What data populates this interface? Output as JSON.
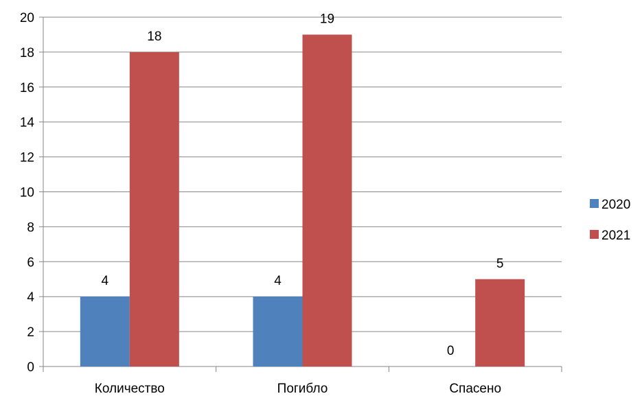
{
  "chart_data": {
    "type": "bar",
    "categories": [
      "Количество",
      "Погибло",
      "Спасено"
    ],
    "series": [
      {
        "name": "2020",
        "values": [
          4,
          4,
          0
        ],
        "color": "#4F81BD"
      },
      {
        "name": "2021",
        "values": [
          18,
          19,
          5
        ],
        "color": "#C0504D"
      }
    ],
    "ylim": [
      0,
      20
    ],
    "yticks": [
      0,
      2,
      4,
      6,
      8,
      10,
      12,
      14,
      16,
      18,
      20
    ],
    "grid": true,
    "legend": "right",
    "data_labels": true
  }
}
